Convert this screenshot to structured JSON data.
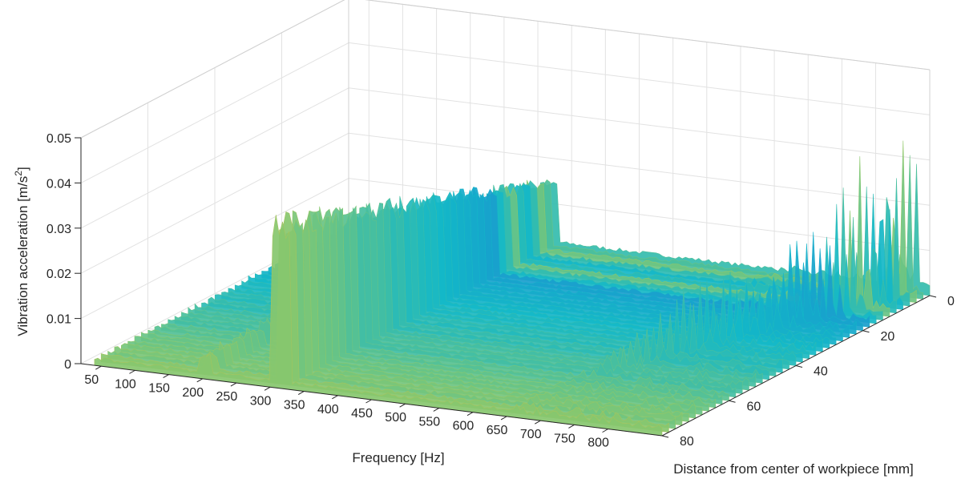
{
  "chart_data": {
    "type": "surface",
    "title": "",
    "xlabel": "Frequency [Hz]",
    "ylabel": "Distance from center of workpiece [mm]",
    "zlabel_main": "Vibration acceleration [m/s",
    "zlabel_sup": "2",
    "zlabel_end": "]",
    "xlim": [
      20,
      880
    ],
    "ylim": [
      0,
      80
    ],
    "zlim": [
      0,
      0.05
    ],
    "x_ticks": [
      50,
      100,
      150,
      200,
      250,
      300,
      350,
      400,
      450,
      500,
      550,
      600,
      650,
      700,
      750,
      800
    ],
    "x_tick_labels": [
      "50",
      "100",
      "150",
      "200",
      "250",
      "300",
      "350",
      "400",
      "450",
      "500",
      "550",
      "600",
      "650",
      "700",
      "750",
      "800"
    ],
    "y_ticks": [
      0,
      20,
      40,
      60,
      80
    ],
    "y_tick_labels": [
      "0",
      "20",
      "40",
      "60",
      "80"
    ],
    "z_ticks": [
      0,
      0.01,
      0.02,
      0.03,
      0.04,
      0.05
    ],
    "z_tick_labels": [
      "0",
      "0.01",
      "0.02",
      "0.03",
      "0.04",
      "0.05"
    ],
    "grid": true,
    "colormap": "parula",
    "colors": {
      "low": "#30309a",
      "mid_low": "#2660d8",
      "mid": "#13b8c8",
      "mid_high": "#8cc86a",
      "high": "#fbb532"
    },
    "ridges": [
      {
        "frequency": 300,
        "peak_acceleration": 0.039,
        "profile": "broad plateau across all distances"
      },
      {
        "frequency": 200,
        "peak_acceleration": 0.006,
        "profile": "low band"
      }
    ],
    "peaks": [
      {
        "frequency": 860,
        "distance": 3,
        "acceleration": 0.051
      },
      {
        "frequency": 848,
        "distance": 7,
        "acceleration": 0.046
      },
      {
        "frequency": 836,
        "distance": 11,
        "acceleration": 0.041
      },
      {
        "frequency": 822,
        "distance": 15,
        "acceleration": 0.036
      },
      {
        "frequency": 808,
        "distance": 19,
        "acceleration": 0.032
      },
      {
        "frequency": 794,
        "distance": 23,
        "acceleration": 0.029
      },
      {
        "frequency": 780,
        "distance": 27,
        "acceleration": 0.026
      },
      {
        "frequency": 766,
        "distance": 31,
        "acceleration": 0.023
      },
      {
        "frequency": 752,
        "distance": 35,
        "acceleration": 0.02
      },
      {
        "frequency": 738,
        "distance": 39,
        "acceleration": 0.018
      },
      {
        "frequency": 724,
        "distance": 43,
        "acceleration": 0.016
      },
      {
        "frequency": 710,
        "distance": 47,
        "acceleration": 0.014
      },
      {
        "frequency": 696,
        "distance": 51,
        "acceleration": 0.013
      },
      {
        "frequency": 682,
        "distance": 55,
        "acceleration": 0.012
      }
    ]
  }
}
